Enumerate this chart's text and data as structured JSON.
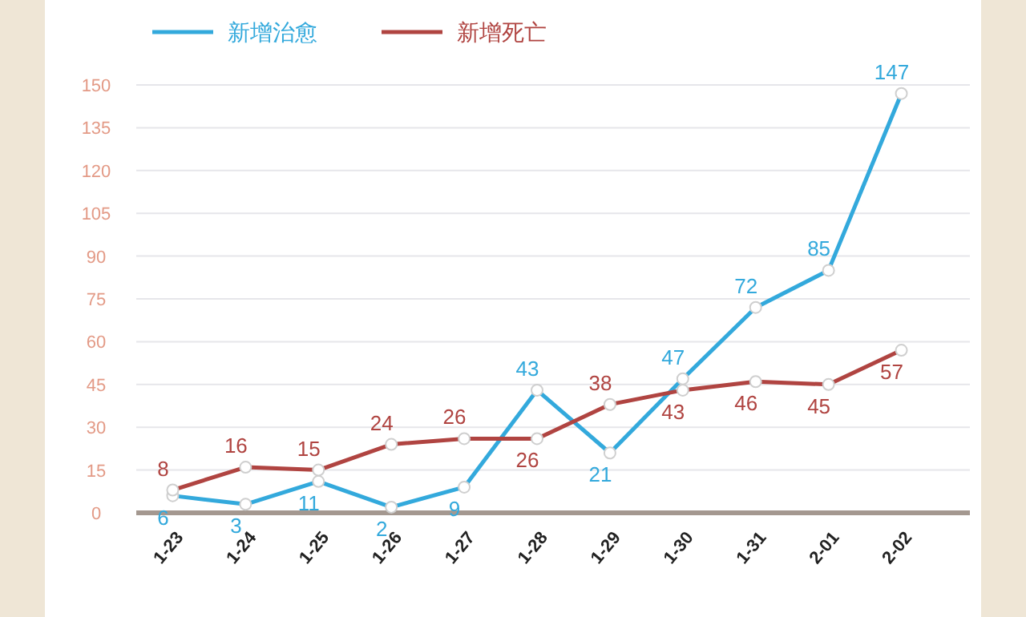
{
  "chart_data": {
    "type": "line",
    "categories": [
      "1-23",
      "1-24",
      "1-25",
      "1-26",
      "1-27",
      "1-28",
      "1-29",
      "1-30",
      "1-31",
      "2-01",
      "2-02"
    ],
    "series": [
      {
        "name": "新增治愈",
        "color": "#33a9dc",
        "values": [
          6,
          3,
          11,
          2,
          9,
          43,
          21,
          47,
          72,
          85,
          147
        ]
      },
      {
        "name": "新增死亡",
        "color": "#b04441",
        "values": [
          8,
          16,
          15,
          24,
          26,
          26,
          38,
          43,
          46,
          45,
          57
        ]
      }
    ],
    "ylim": [
      0,
      150
    ],
    "yticks": [
      0,
      15,
      30,
      45,
      60,
      75,
      90,
      105,
      120,
      135,
      150
    ],
    "grid": "y",
    "legend": "top left",
    "marker": "circle",
    "data_labels": true
  }
}
